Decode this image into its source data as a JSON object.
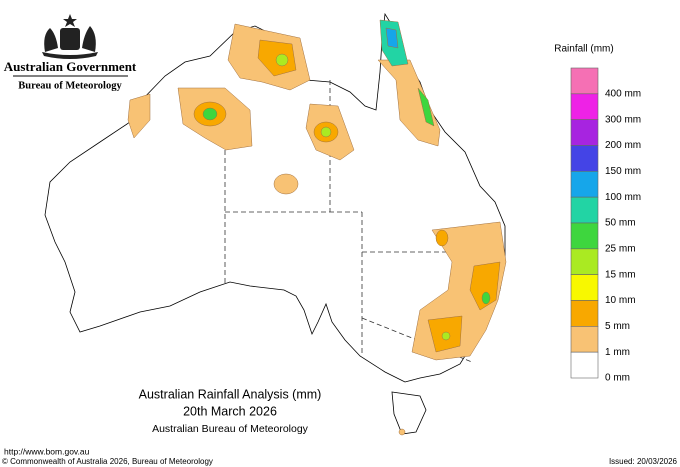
{
  "header": {
    "government": "Australian Government",
    "agency": "Bureau of Meteorology"
  },
  "legend": {
    "title": "Rainfall (mm)",
    "colors": [
      "#f570b4",
      "#ee22e6",
      "#a724e0",
      "#4444e6",
      "#16a6ea",
      "#22d4a4",
      "#3ed63e",
      "#aaea22",
      "#f8f800",
      "#f8a800",
      "#f8c274",
      "#ffffff"
    ],
    "labels": [
      "400 mm",
      "300 mm",
      "200 mm",
      "150 mm",
      "100 mm",
      "50 mm",
      "25 mm",
      "15 mm",
      "10 mm",
      "5 mm",
      "1 mm",
      "0 mm"
    ]
  },
  "caption": {
    "title": "Australian Rainfall Analysis (mm)",
    "date": "20th March 2026",
    "source": "Australian Bureau of Meteorology"
  },
  "footer": {
    "url": "http://www.bom.gov.au",
    "copyright": "© Commonwealth of Australia 2026, Bureau of Meteorology",
    "issued": "Issued: 20/03/2026"
  }
}
